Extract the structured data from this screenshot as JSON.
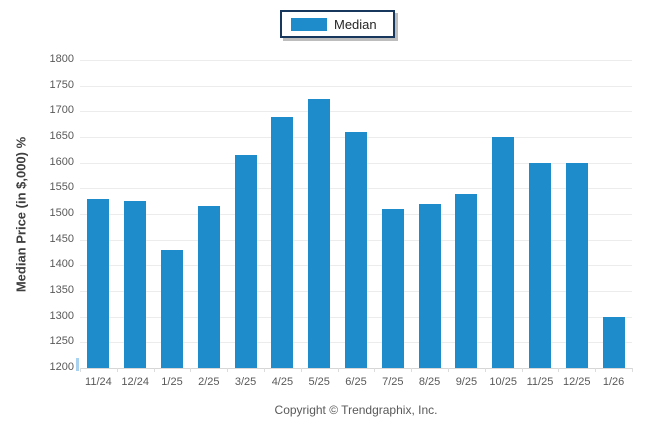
{
  "legend": {
    "label": "Median"
  },
  "footer": {
    "copyright": "Copyright © Trendgraphix, Inc."
  },
  "colors": {
    "bar_blue": "#1e8bca",
    "legend_border_navy": "#17375d",
    "gridline_gray": "#ececec",
    "text_gray": "#595959"
  },
  "chart_data": {
    "type": "bar",
    "title": "",
    "series_name": "Median",
    "xlabel": "",
    "ylabel": "Median Price (in $,000) %",
    "categories": [
      "11/24",
      "12/24",
      "1/25",
      "2/25",
      "3/25",
      "4/25",
      "5/25",
      "6/25",
      "7/25",
      "8/25",
      "9/25",
      "10/25",
      "11/25",
      "12/25",
      "1/26"
    ],
    "values": [
      1530,
      1525,
      1430,
      1515,
      1615,
      1690,
      1725,
      1660,
      1510,
      1520,
      1540,
      1650,
      1600,
      1600,
      1300
    ],
    "ylim": [
      1200,
      1800
    ],
    "ytick_step": 50,
    "grid": true,
    "legend_position": "top-center",
    "bar_color": "#1e8bca"
  }
}
